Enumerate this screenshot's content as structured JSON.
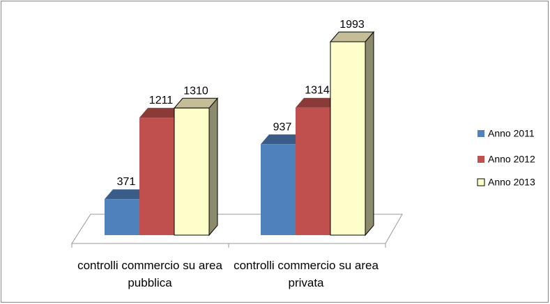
{
  "chart_data": {
    "type": "bar3d",
    "categories": [
      "controlli commercio su area pubblica",
      "controlli commercio su area privata"
    ],
    "series": [
      {
        "name": "Anno 2011",
        "color": "#4f81bd",
        "values": [
          371,
          937
        ]
      },
      {
        "name": "Anno 2012",
        "color": "#c0504d",
        "values": [
          1211,
          1314
        ]
      },
      {
        "name": "Anno 2013",
        "color": "#ffffcc",
        "values": [
          1310,
          1993
        ]
      }
    ],
    "legend": "right"
  }
}
